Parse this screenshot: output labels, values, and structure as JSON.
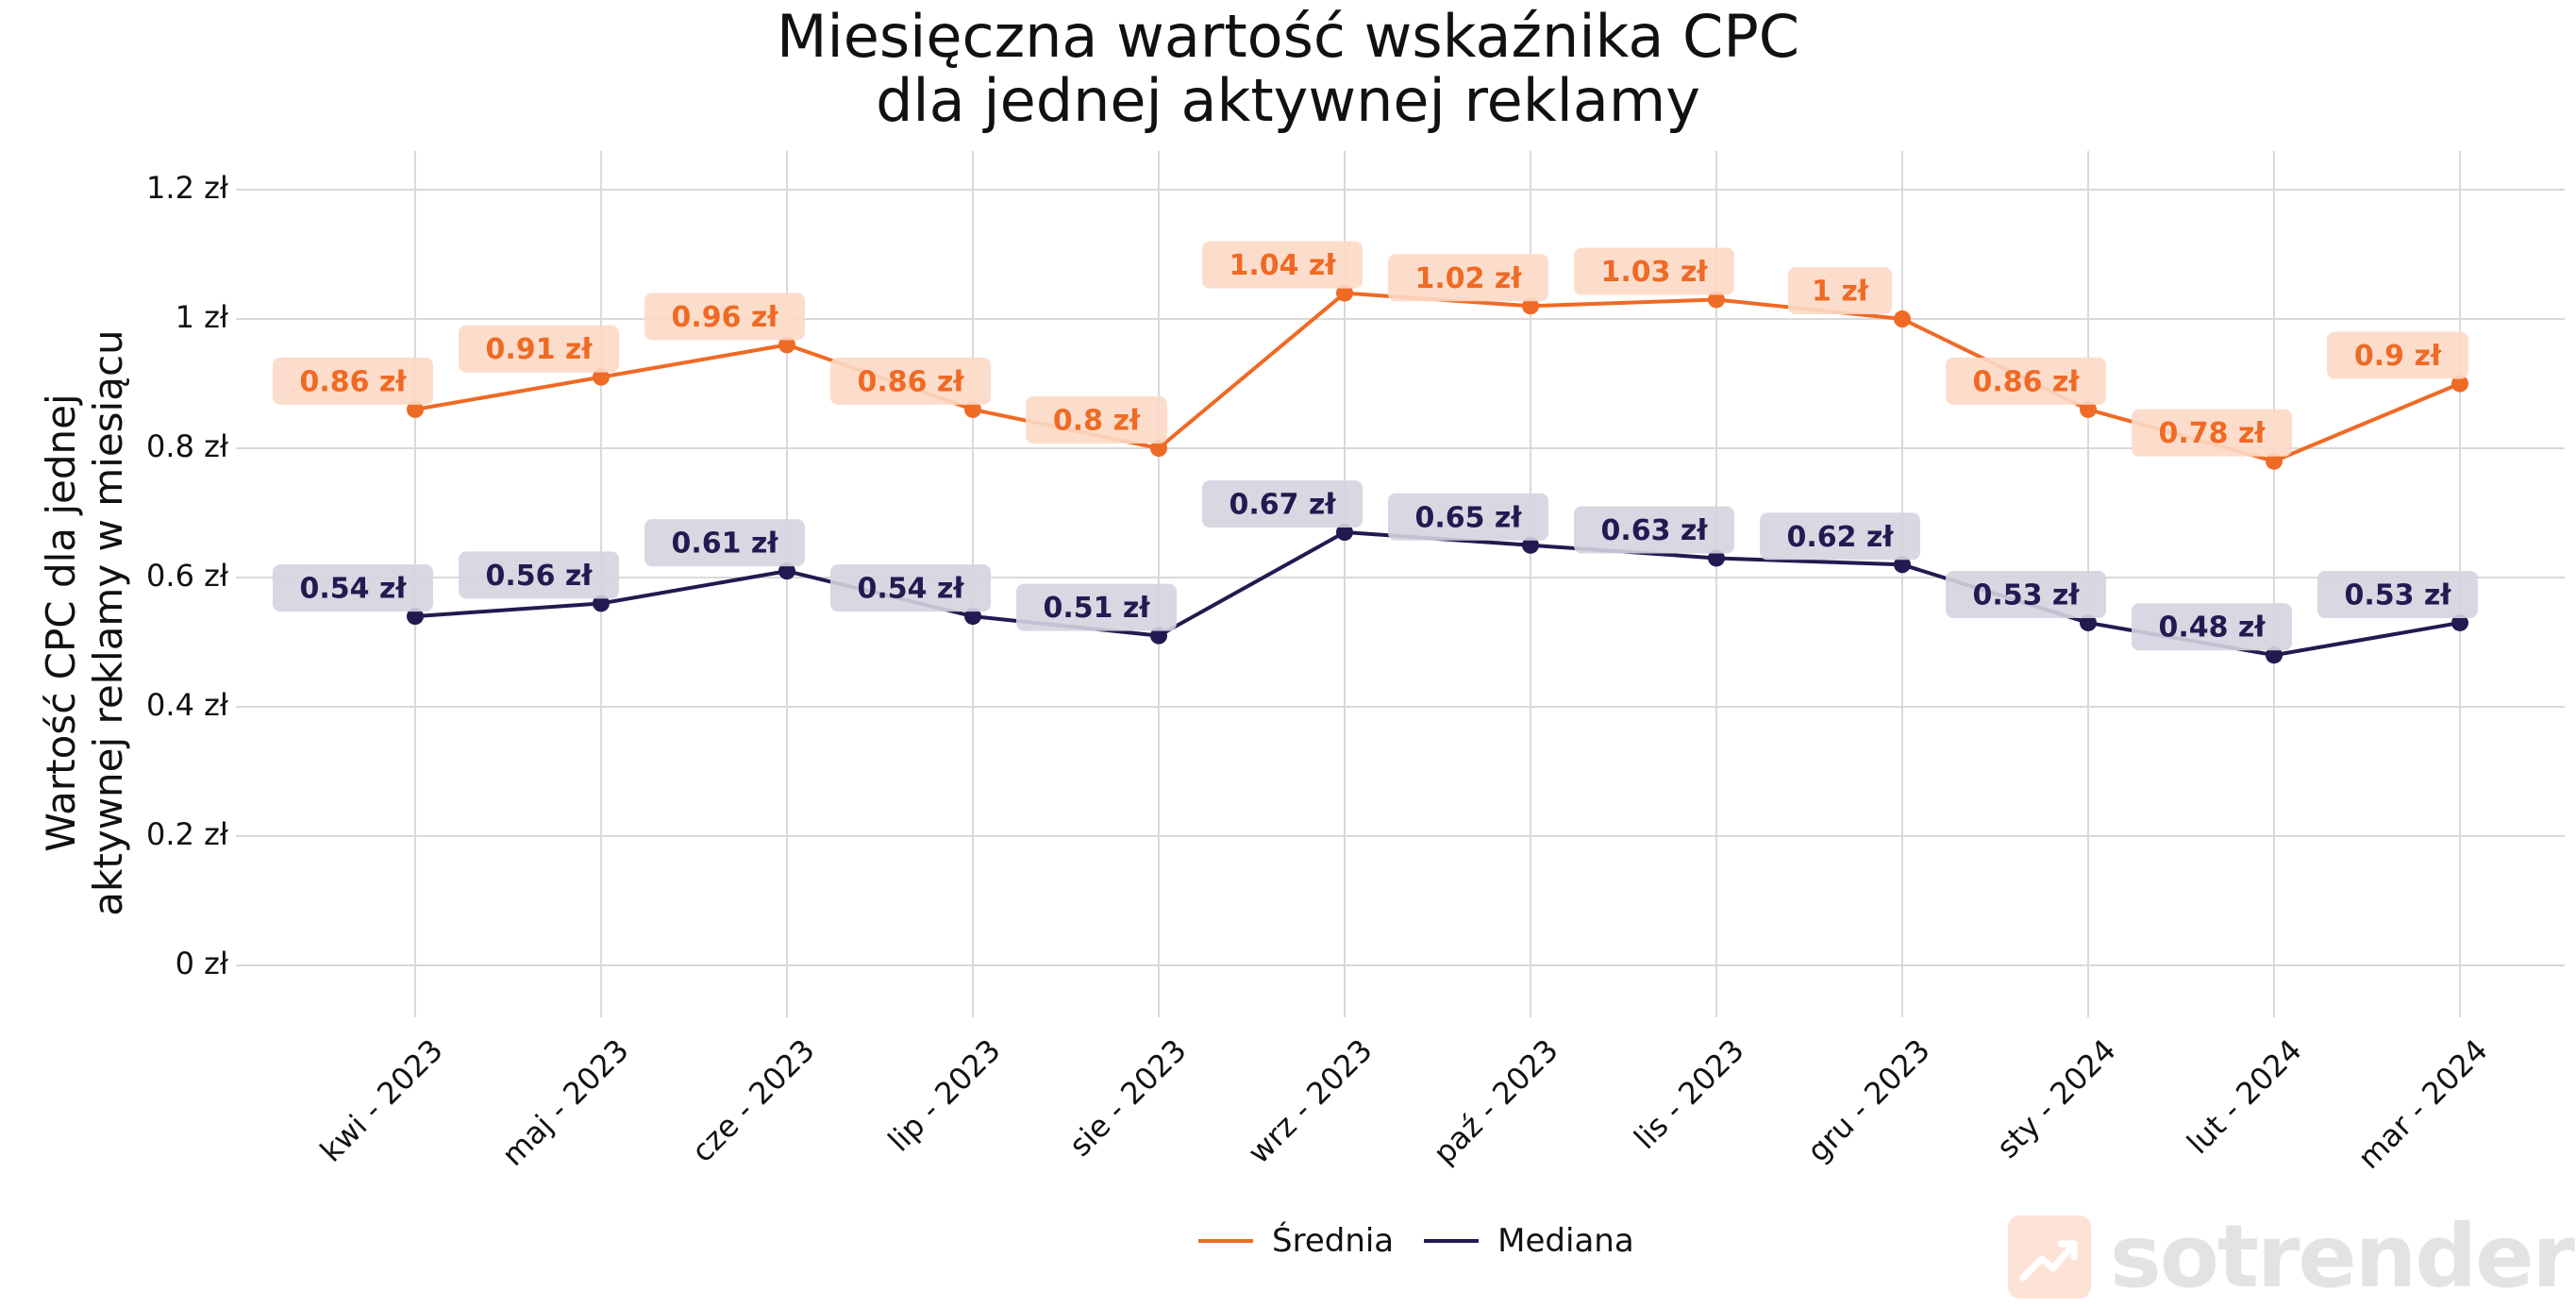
{
  "chart_data": {
    "type": "line",
    "title": "Miesięczna wartość wskaźnika CPC\ndla jednej aktywnej reklamy",
    "title_lines": [
      "Miesięczna wartość wskaźnika CPC",
      "dla jednej aktywnej reklamy"
    ],
    "ylabel_lines": [
      "Wartość CPC dla jednej",
      "aktywnej reklamy w miesiącu"
    ],
    "xlabel": "",
    "categories": [
      "kwi - 2023",
      "maj - 2023",
      "cze - 2023",
      "lip - 2023",
      "sie - 2023",
      "wrz - 2023",
      "paź - 2023",
      "lis - 2023",
      "gru - 2023",
      "sty - 2024",
      "lut - 2024",
      "mar - 2024"
    ],
    "ylim": [
      -0.06,
      1.26
    ],
    "yticks": [
      0,
      0.2,
      0.4,
      0.6,
      0.8,
      1,
      1.2
    ],
    "ytick_labels": [
      "0 zł",
      "0.2 zł",
      "0.4 zł",
      "0.6 zł",
      "0.8 zł",
      "1 zł",
      "1.2 zł"
    ],
    "grid": true,
    "legend_position": "bottom-center",
    "series": [
      {
        "name": "Średnia",
        "color": "#ef6a24",
        "label_bg": "#fcd9c6",
        "values": [
          0.86,
          0.91,
          0.96,
          0.86,
          0.8,
          1.04,
          1.02,
          1.03,
          1.0,
          0.86,
          0.78,
          0.9
        ],
        "labels": [
          "0.86 zł",
          "0.91 zł",
          "0.96 zł",
          "0.86 zł",
          "0.8 zł",
          "1.04 zł",
          "1.02 zł",
          "1.03 zł",
          "1 zł",
          "0.86 zł",
          "0.78 zł",
          "0.9 zł"
        ]
      },
      {
        "name": "Mediana",
        "color": "#221a50",
        "label_bg": "#d6d3e0",
        "values": [
          0.54,
          0.56,
          0.61,
          0.54,
          0.51,
          0.67,
          0.65,
          0.63,
          0.62,
          0.53,
          0.48,
          0.53
        ],
        "labels": [
          "0.54 zł",
          "0.56 zł",
          "0.61 zł",
          "0.54 zł",
          "0.51 zł",
          "0.67 zł",
          "0.65 zł",
          "0.63 zł",
          "0.62 zł",
          "0.53 zł",
          "0.48 zł",
          "0.53 zł"
        ]
      }
    ]
  },
  "logo": {
    "text": "sotrender",
    "icon": "trend-up-arrow-icon"
  }
}
